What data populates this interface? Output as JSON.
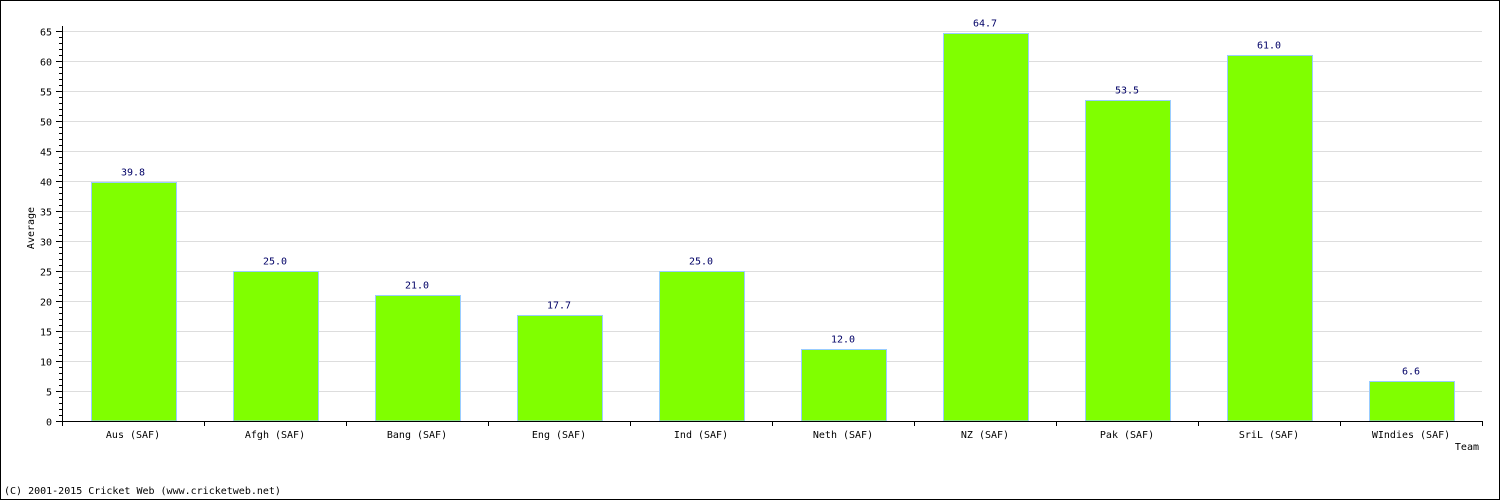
{
  "chart_data": {
    "type": "bar",
    "title": "",
    "xlabel": "Team",
    "ylabel": "Average",
    "ylim": [
      0,
      65
    ],
    "y_major_ticks": [
      0,
      5,
      10,
      15,
      20,
      25,
      30,
      35,
      40,
      45,
      50,
      55,
      60,
      65
    ],
    "grid": true,
    "categories": [
      "Aus (SAF)",
      "Afgh (SAF)",
      "Bang (SAF)",
      "Eng (SAF)",
      "Ind (SAF)",
      "Neth (SAF)",
      "NZ (SAF)",
      "Pak (SAF)",
      "SriL (SAF)",
      "WIndies (SAF)"
    ],
    "values": [
      39.8,
      25.0,
      21.0,
      17.7,
      25.0,
      12.0,
      64.7,
      53.5,
      61.0,
      6.6
    ],
    "value_labels": [
      "39.8",
      "25.0",
      "21.0",
      "17.7",
      "25.0",
      "12.0",
      "64.7",
      "53.5",
      "61.0",
      "6.6"
    ],
    "colors": {
      "bar": "#80ff00",
      "bar_edge": "#99ccff",
      "grid": "#dddddd",
      "value_text": "#000066"
    }
  },
  "footer": {
    "copyright": "(C) 2001-2015 Cricket Web (www.cricketweb.net)"
  }
}
